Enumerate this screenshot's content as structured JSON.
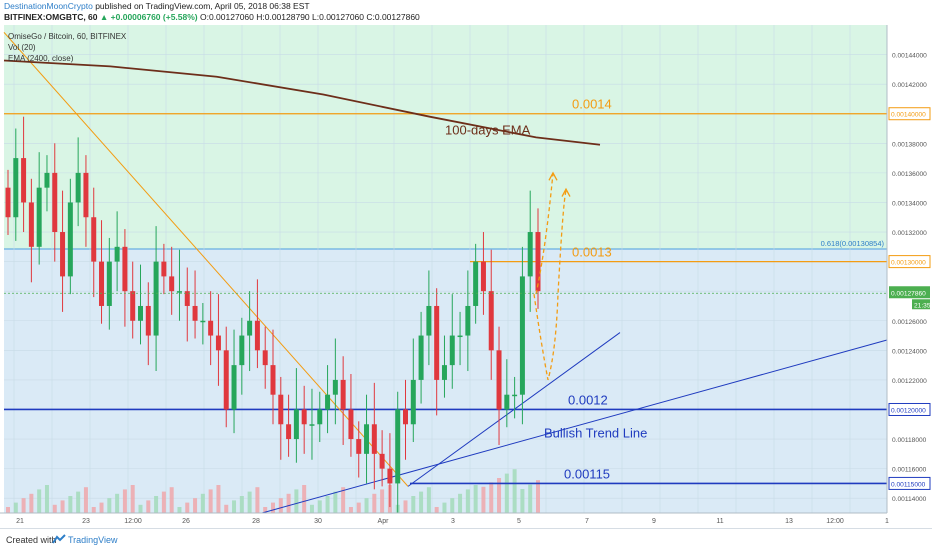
{
  "header": {
    "author": "DestinationMoonCrypto",
    "published": "published on TradingView.com, April 05, 2018 06:38 EST",
    "symbol": "BITFINEX:OMGBTC, 60",
    "change": "▲ +0.00006760 (+5.58%)",
    "ohlc": "O:0.00127060 H:0.00128790 L:0.00127060 C:0.00127860"
  },
  "legend": {
    "title": "OmiseGo / Bitcoin, 60, BITFINEX",
    "vol": "Vol (20)",
    "ema": "EMA (2400, close)"
  },
  "footer": {
    "created": "Created with",
    "brand": "TradingView"
  },
  "colors": {
    "up": "#26a65b",
    "down": "#e0383e",
    "ema": "#6d2e1a",
    "resistance": "#f39c12",
    "support": "#1f3bbf",
    "fib_line": "#4a9de0",
    "green_zone": "#d9f5e5",
    "blue_zone": "#daeaf6",
    "price_badge": "#4caf50"
  },
  "chart_data": {
    "type": "candlestick",
    "ylim": [
      0.00113,
      0.00146
    ],
    "y_ticks": [
      "0.00114000",
      "0.00116000",
      "0.00118000",
      "0.00120000",
      "0.00122000",
      "0.00124000",
      "0.00126000",
      "0.00128000",
      "0.00130000",
      "0.00132000",
      "0.00134000",
      "0.00136000",
      "0.00138000",
      "0.00140000",
      "0.00142000",
      "0.00144000"
    ],
    "x_ticks": [
      "21",
      "23",
      "12:00",
      "26",
      "28",
      "30",
      "Apr",
      "3",
      "5",
      "7",
      "9",
      "11",
      "13",
      "12:00",
      "1"
    ],
    "current_price": "0.00127860",
    "countdown": "21:35",
    "fib_label": "0.618(0.00130854)",
    "fib_level": 0.00130854,
    "horizontal_levels": [
      {
        "value": 0.0014,
        "label": "0.0014",
        "price_tag": "0.00140000",
        "kind": "resistance"
      },
      {
        "value": 0.0013,
        "label": "0.0013",
        "price_tag": "0.00130000",
        "kind": "resistance"
      },
      {
        "value": 0.0012,
        "label": "0.0012",
        "price_tag": "0.00120000",
        "kind": "support"
      },
      {
        "value": 0.00115,
        "label": "0.00115",
        "price_tag": "0.00115000",
        "kind": "support"
      }
    ],
    "annotations": {
      "ema_label": "100-days EMA",
      "trend_label": "Bullish Trend Line"
    },
    "ema_points": [
      [
        0,
        0.001436
      ],
      [
        5,
        0.001432
      ],
      [
        10,
        0.001425
      ],
      [
        15,
        0.001413
      ],
      [
        20,
        0.001398
      ],
      [
        25,
        0.001384
      ],
      [
        28,
        0.001379
      ]
    ],
    "candles_close": [
      0.00133,
      0.00137,
      0.00134,
      0.00131,
      0.00135,
      0.00136,
      0.00132,
      0.00129,
      0.00134,
      0.00136,
      0.00133,
      0.0013,
      0.00127,
      0.0013,
      0.00131,
      0.00128,
      0.00126,
      0.00127,
      0.00125,
      0.0013,
      0.00129,
      0.00128,
      0.00128,
      0.00127,
      0.00126,
      0.00126,
      0.00125,
      0.00124,
      0.0012,
      0.00123,
      0.00125,
      0.00126,
      0.00124,
      0.00123,
      0.00121,
      0.00119,
      0.00118,
      0.0012,
      0.00119,
      0.00119,
      0.0012,
      0.00121,
      0.00122,
      0.0012,
      0.00118,
      0.00117,
      0.00119,
      0.00117,
      0.00116,
      0.00115,
      0.0012,
      0.00119,
      0.00122,
      0.00125,
      0.00127,
      0.00122,
      0.00123,
      0.00125,
      0.00125,
      0.00127,
      0.0013,
      0.00128,
      0.00124,
      0.0012,
      0.00121,
      0.00121,
      0.00129,
      0.00132,
      0.00128
    ]
  }
}
